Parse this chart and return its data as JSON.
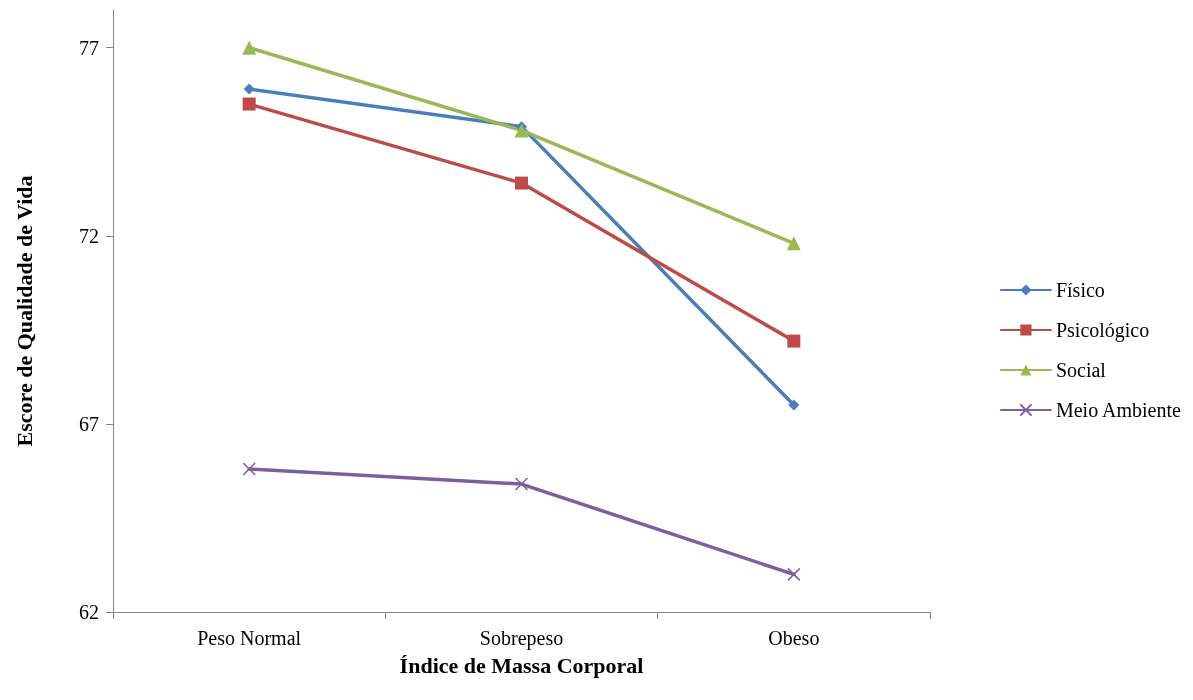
{
  "chart_data": {
    "type": "line",
    "xlabel": "Índice de Massa Corporal",
    "ylabel": "Escore de Qualidade de Vida",
    "categories": [
      "Peso Normal",
      "Sobrepeso",
      "Obeso"
    ],
    "series": [
      {
        "name": "Físico",
        "color": "#4a7ebb",
        "values": [
          75.9,
          74.9,
          67.5
        ],
        "marker": "diamond"
      },
      {
        "name": "Psicológico",
        "color": "#be4b48",
        "values": [
          75.5,
          73.4,
          69.2
        ],
        "marker": "square"
      },
      {
        "name": "Social",
        "color": "#98b954",
        "values": [
          77.0,
          74.8,
          71.8
        ],
        "marker": "triangle"
      },
      {
        "name": "Meio Ambiente",
        "color": "#7d5fa0",
        "values": [
          65.8,
          65.4,
          63.0
        ],
        "marker": "cross"
      }
    ],
    "ylim": [
      62,
      78
    ],
    "yticks": [
      62,
      67,
      72,
      77
    ],
    "grid": false,
    "legend": "right",
    "line_style": "solid"
  }
}
